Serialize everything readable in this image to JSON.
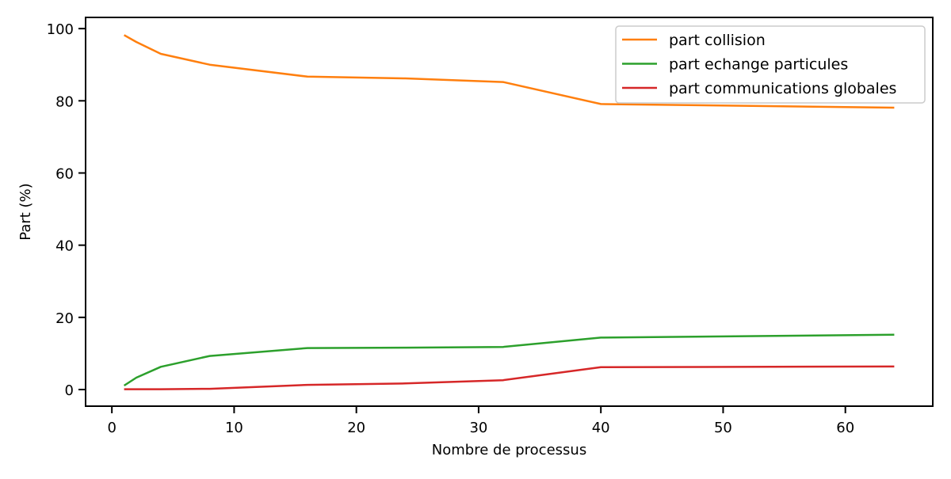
{
  "chart_data": {
    "type": "line",
    "title": "",
    "xlabel": "Nombre de processus",
    "ylabel": "Part (%)",
    "xlim": [
      -2.15,
      67.15
    ],
    "ylim": [
      -4.6,
      103.1
    ],
    "xticks": [
      0,
      10,
      20,
      30,
      40,
      50,
      60
    ],
    "yticks": [
      0,
      20,
      40,
      60,
      80,
      100
    ],
    "grid": false,
    "legend_position": "top-right",
    "series": [
      {
        "name": "part collision",
        "color": "#ff7f0e",
        "x": [
          1,
          2,
          4,
          8,
          16,
          24,
          32,
          40,
          64
        ],
        "y": [
          98.2,
          96.3,
          93.0,
          90.0,
          86.7,
          86.2,
          85.2,
          79.1,
          78.1
        ]
      },
      {
        "name": "part echange particules",
        "color": "#2ca02c",
        "x": [
          1,
          2,
          4,
          8,
          16,
          24,
          32,
          40,
          64
        ],
        "y": [
          1.1,
          3.3,
          6.3,
          9.3,
          11.5,
          11.6,
          11.8,
          14.4,
          15.2
        ]
      },
      {
        "name": "part communications globales",
        "color": "#d62728",
        "x": [
          1,
          2,
          4,
          8,
          16,
          24,
          32,
          40,
          64
        ],
        "y": [
          0.1,
          0.1,
          0.1,
          0.2,
          1.3,
          1.7,
          2.6,
          6.2,
          6.4
        ]
      }
    ]
  }
}
